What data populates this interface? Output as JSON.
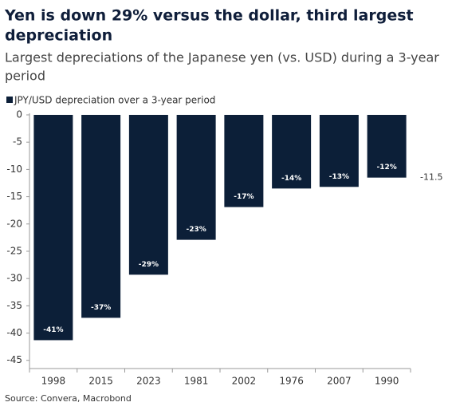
{
  "chart_data": {
    "type": "bar",
    "title": [
      "Yen is down 29% versus the dollar, third largest",
      "depreciation"
    ],
    "subtitle": [
      "Largest depreciations of the Japanese yen (vs. USD) during a 3-year",
      "period"
    ],
    "legend": "JPY/USD depreciation over a 3-year period",
    "categories": [
      "1998",
      "2015",
      "2023",
      "1981",
      "2002",
      "1976",
      "2007",
      "1990"
    ],
    "values": [
      -41.3,
      -37.2,
      -29.3,
      -22.9,
      -16.9,
      -13.5,
      -13.2,
      -11.5
    ],
    "value_labels": [
      "-41%",
      "-37%",
      "-29%",
      "-23%",
      "-17%",
      "-14%",
      "-13%",
      "-12%"
    ],
    "annotation": "-11.5",
    "color": "#0c1f38",
    "ylim": [
      -46.5,
      0
    ],
    "yticks": [
      0,
      -5,
      -10,
      -15,
      -20,
      -25,
      -30,
      -35,
      -40,
      -45
    ],
    "source": "Source: Convera, Macrobond"
  }
}
